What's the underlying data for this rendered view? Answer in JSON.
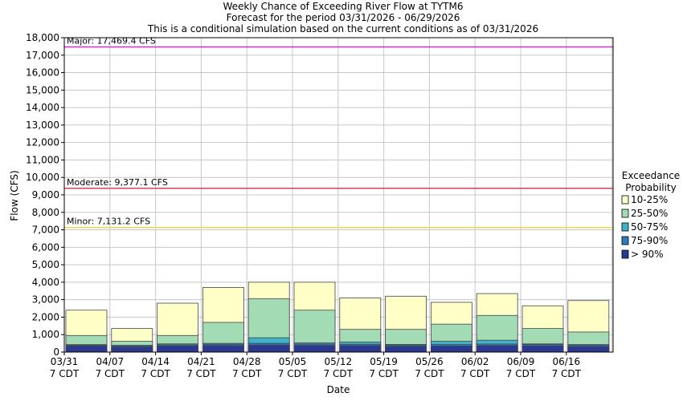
{
  "chart_data": {
    "type": "bar",
    "stacked": true,
    "title": [
      "Weekly Chance of Exceeding River Flow at TYTM6",
      "Forecast for the period 03/31/2026 - 06/29/2026",
      "This is a conditional simulation based on the current conditions as of 03/31/2026"
    ],
    "xlabel": "Date",
    "ylabel": "Flow (CFS)",
    "ylim": [
      0,
      18000
    ],
    "yticks": [
      0,
      1000,
      2000,
      3000,
      4000,
      5000,
      6000,
      7000,
      8000,
      9000,
      10000,
      11000,
      12000,
      13000,
      14000,
      15000,
      16000,
      17000,
      18000
    ],
    "ytick_labels": [
      "0",
      "1,000",
      "2,000",
      "3,000",
      "4,000",
      "5,000",
      "6,000",
      "7,000",
      "8,000",
      "9,000",
      "10,000",
      "11,000",
      "12,000",
      "13,000",
      "14,000",
      "15,000",
      "16,000",
      "17,000",
      "18,000"
    ],
    "grid": true,
    "categories": [
      [
        "03/31",
        "7 CDT"
      ],
      [
        "04/07",
        "7 CDT"
      ],
      [
        "04/14",
        "7 CDT"
      ],
      [
        "04/21",
        "7 CDT"
      ],
      [
        "04/28",
        "7 CDT"
      ],
      [
        "05/05",
        "7 CDT"
      ],
      [
        "05/12",
        "7 CDT"
      ],
      [
        "05/19",
        "7 CDT"
      ],
      [
        "05/26",
        "7 CDT"
      ],
      [
        "06/02",
        "7 CDT"
      ],
      [
        "06/09",
        "7 CDT"
      ],
      [
        "06/16",
        "7 CDT"
      ]
    ],
    "legend": {
      "title": [
        "Exceedance",
        "Probability"
      ],
      "position": "right",
      "entries": [
        "10-25%",
        "25-50%",
        "50-75%",
        "75-90%",
        "> 90%"
      ]
    },
    "series": [
      {
        "name": "> 90%",
        "color": "#2b3990",
        "tops": [
          350,
          300,
          350,
          370,
          400,
          380,
          370,
          330,
          350,
          370,
          360,
          320
        ]
      },
      {
        "name": "75-90%",
        "color": "#2f7bbf",
        "tops": [
          400,
          360,
          420,
          450,
          500,
          460,
          450,
          400,
          430,
          460,
          440,
          400
        ]
      },
      {
        "name": "50-75%",
        "color": "#40b1c6",
        "tops": [
          430,
          390,
          470,
          500,
          820,
          530,
          580,
          440,
          620,
          680,
          470,
          430
        ]
      },
      {
        "name": "25-50%",
        "color": "#a3dbb5",
        "tops": [
          950,
          620,
          950,
          1700,
          3050,
          2400,
          1300,
          1300,
          1600,
          2100,
          1350,
          1150
        ]
      },
      {
        "name": "10-25%",
        "color": "#ffffc8",
        "tops": [
          2400,
          1350,
          2800,
          3700,
          4000,
          4000,
          3100,
          3200,
          2850,
          3350,
          2650,
          2950
        ]
      }
    ],
    "thresholds": [
      {
        "label": "Major: 17,469.4 CFS",
        "value": 17469.4,
        "color": "#cc33cc"
      },
      {
        "label": "Moderate: 9,377.1 CFS",
        "value": 9377.1,
        "color": "#e0405a"
      },
      {
        "label": "Minor: 7,131.2 CFS",
        "value": 7131.2,
        "color": "#e8d84a"
      }
    ]
  }
}
